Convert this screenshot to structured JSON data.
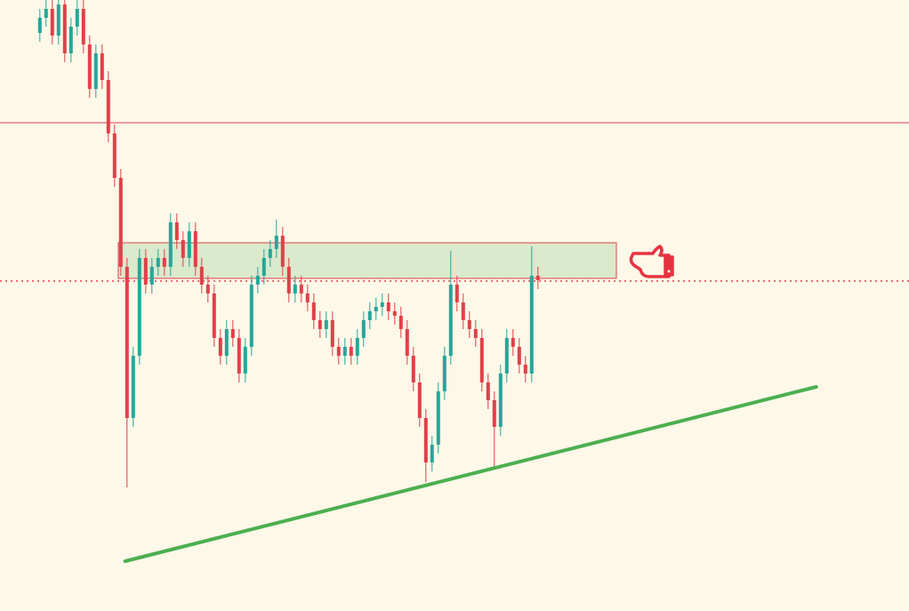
{
  "chart_data": {
    "type": "candlestick",
    "xlim": [
      -6.4,
      139.6
    ],
    "ylim": [
      0,
      687
    ],
    "up_color": "#26a69a",
    "down_color": "#e0404a",
    "open": [
      650,
      667,
      677,
      647,
      682,
      627,
      657,
      677,
      637,
      587,
      627,
      597,
      537,
      487,
      387,
      217,
      287,
      397,
      367,
      387,
      397,
      387,
      437,
      417,
      397,
      427,
      387,
      367,
      357,
      307,
      287,
      317,
      307,
      267,
      297,
      367,
      377,
      397,
      407,
      422,
      387,
      357,
      367,
      357,
      347,
      327,
      317,
      327,
      297,
      287,
      297,
      287,
      307,
      327,
      337,
      342,
      347,
      337,
      332,
      317,
      287,
      257,
      217,
      167,
      187,
      247,
      287,
      367,
      347,
      327,
      317,
      307,
      257,
      237,
      207,
      267,
      307,
      297,
      277,
      267,
      377
    ],
    "close": [
      667,
      677,
      647,
      682,
      627,
      657,
      677,
      637,
      587,
      627,
      597,
      537,
      487,
      387,
      217,
      287,
      397,
      367,
      387,
      397,
      387,
      437,
      417,
      397,
      427,
      387,
      367,
      357,
      307,
      287,
      317,
      307,
      267,
      297,
      367,
      377,
      397,
      407,
      422,
      387,
      357,
      367,
      357,
      347,
      327,
      317,
      327,
      297,
      287,
      297,
      287,
      307,
      327,
      337,
      342,
      347,
      337,
      332,
      317,
      287,
      257,
      217,
      167,
      187,
      247,
      287,
      367,
      347,
      327,
      317,
      307,
      257,
      237,
      207,
      267,
      307,
      297,
      277,
      267,
      377,
      372
    ],
    "high": [
      677,
      687,
      687,
      692,
      692,
      667,
      687,
      687,
      647,
      637,
      637,
      607,
      547,
      497,
      397,
      297,
      407,
      407,
      397,
      407,
      407,
      447,
      447,
      427,
      437,
      437,
      397,
      377,
      367,
      317,
      327,
      327,
      317,
      307,
      377,
      387,
      407,
      417,
      440,
      432,
      397,
      377,
      377,
      367,
      357,
      337,
      337,
      337,
      307,
      307,
      307,
      317,
      337,
      347,
      352,
      357,
      357,
      347,
      342,
      327,
      297,
      267,
      227,
      197,
      257,
      297,
      405,
      377,
      357,
      337,
      327,
      317,
      267,
      247,
      277,
      317,
      317,
      307,
      287,
      410,
      387
    ],
    "low": [
      640,
      657,
      637,
      637,
      617,
      617,
      647,
      627,
      577,
      577,
      587,
      527,
      477,
      377,
      139,
      207,
      277,
      357,
      357,
      377,
      377,
      377,
      407,
      387,
      387,
      377,
      357,
      347,
      297,
      277,
      277,
      297,
      257,
      257,
      287,
      357,
      367,
      387,
      397,
      377,
      347,
      347,
      347,
      337,
      317,
      307,
      307,
      287,
      277,
      277,
      277,
      277,
      297,
      317,
      327,
      332,
      327,
      322,
      307,
      277,
      247,
      207,
      145,
      157,
      177,
      237,
      277,
      337,
      317,
      307,
      297,
      247,
      227,
      160,
      197,
      257,
      287,
      267,
      257,
      257,
      362
    ],
    "hlines": [
      {
        "value": 549,
        "color": "#e0404a",
        "style": "solid"
      },
      {
        "value": 371,
        "color": "#e0404a",
        "style": "dotted"
      }
    ],
    "zone": {
      "x": [
        12.6,
        92.6
      ],
      "y": [
        374,
        414
      ],
      "color": "#dbe9cc",
      "border": "#e0404a"
    },
    "trendline": {
      "x": [
        13.7,
        124.7
      ],
      "y": [
        56,
        252
      ],
      "color": "#4caf50"
    }
  }
}
